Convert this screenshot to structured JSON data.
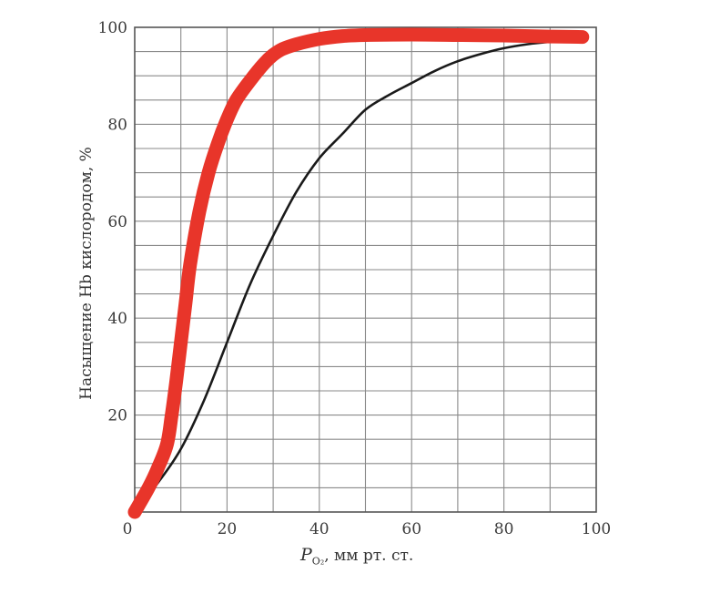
{
  "chart_data": {
    "type": "line",
    "title": "",
    "xlabel_symbol": "P",
    "xlabel_subscript": "O₂",
    "xlabel_units": ", мм рт. ст.",
    "ylabel": "Насыщение Hb кислородом, %",
    "xlim": [
      0,
      100
    ],
    "ylim": [
      0,
      100
    ],
    "x_ticks": [
      0,
      20,
      40,
      60,
      80,
      100
    ],
    "y_ticks": [
      20,
      40,
      60,
      80,
      100
    ],
    "grid": true,
    "series": [
      {
        "color": "#1a1a1a",
        "x": [
          0,
          5,
          10,
          15,
          20,
          25,
          30,
          35,
          40,
          45,
          50,
          55,
          60,
          65,
          70,
          75,
          80,
          85,
          90,
          95,
          98
        ],
        "y": [
          0,
          6,
          13,
          23,
          35,
          47,
          57,
          66,
          73,
          78,
          83,
          86,
          88.5,
          91,
          93,
          94.5,
          95.7,
          96.5,
          97,
          97.3,
          97.4
        ]
      },
      {
        "color": "#e8352a",
        "x": [
          0,
          3,
          5,
          7,
          8,
          9,
          10,
          11,
          12,
          14,
          16,
          18,
          20,
          22,
          25,
          28,
          30,
          32,
          35,
          40,
          45,
          50,
          60,
          70,
          80,
          90,
          97
        ],
        "y": [
          0,
          5,
          9,
          14,
          20,
          27,
          35,
          43,
          51,
          62,
          70,
          76,
          81,
          85,
          89,
          92.5,
          94.3,
          95.5,
          96.5,
          97.6,
          98.2,
          98.4,
          98.5,
          98.4,
          98.3,
          98.1,
          98
        ]
      }
    ]
  }
}
